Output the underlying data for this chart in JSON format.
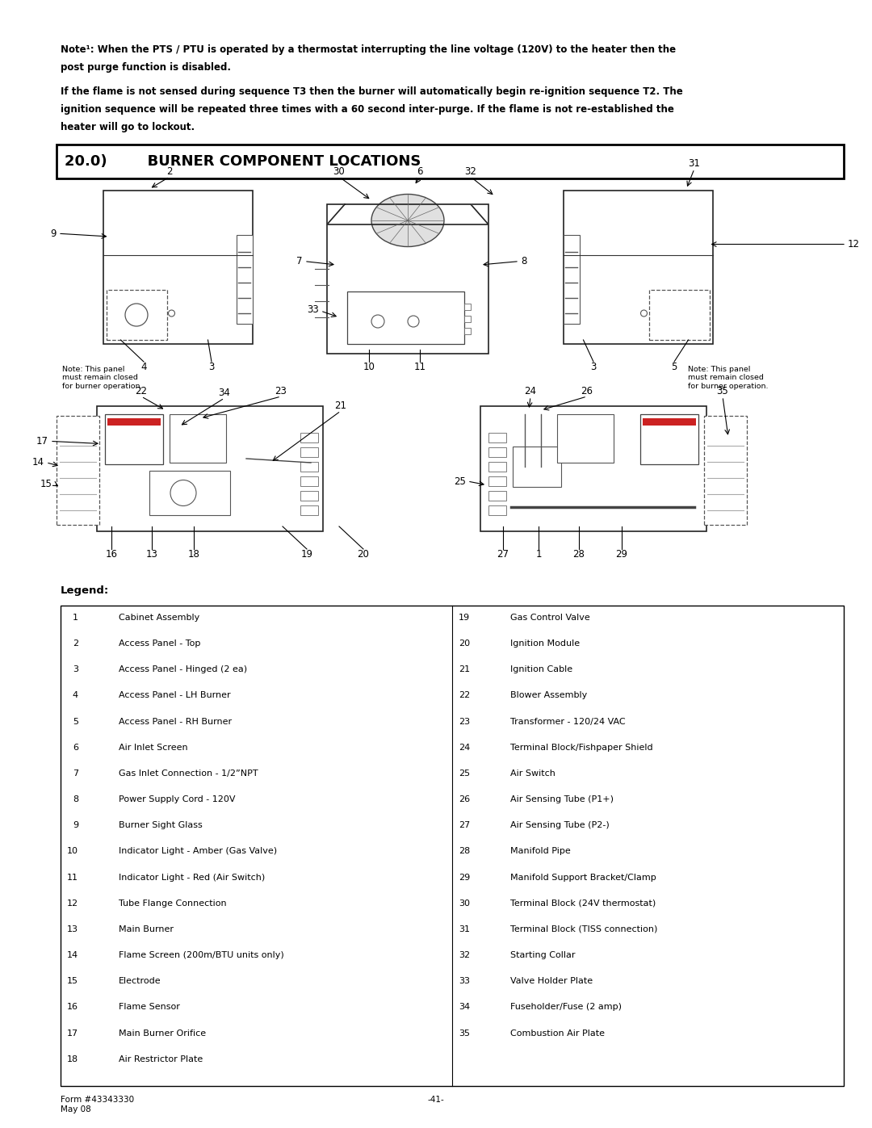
{
  "background_color": "#ffffff",
  "page_width": 10.8,
  "page_height": 13.97,
  "note1_line1": "Note¹: When the PTS / PTU is operated by a thermostat interrupting the line voltage (120V) to the heater then the",
  "note1_line2": "post purge function is disabled.",
  "note2_line1": "If the flame is not sensed during sequence T3 then the burner will automatically begin re-ignition sequence T2. The",
  "note2_line2": "ignition sequence will be repeated three times with a 60 second inter-purge. If the flame is not re-established the",
  "note2_line3": "heater will go to lockout.",
  "section_title": "20.0)        BURNER COMPONENT LOCATIONS",
  "legend_title": "Legend:",
  "legend_left": [
    [
      1,
      "Cabinet Assembly"
    ],
    [
      2,
      "Access Panel - Top"
    ],
    [
      3,
      "Access Panel - Hinged (2 ea)"
    ],
    [
      4,
      "Access Panel - LH Burner"
    ],
    [
      5,
      "Access Panel - RH Burner"
    ],
    [
      6,
      "Air Inlet Screen"
    ],
    [
      7,
      "Gas Inlet Connection - 1/2”NPT"
    ],
    [
      8,
      "Power Supply Cord - 120V"
    ],
    [
      9,
      "Burner Sight Glass"
    ],
    [
      10,
      "Indicator Light - Amber (Gas Valve)"
    ],
    [
      11,
      "Indicator Light - Red (Air Switch)"
    ],
    [
      12,
      "Tube Flange Connection"
    ],
    [
      13,
      "Main Burner"
    ],
    [
      14,
      "Flame Screen (200m/BTU units only)"
    ],
    [
      15,
      "Electrode"
    ],
    [
      16,
      "Flame Sensor"
    ],
    [
      17,
      "Main Burner Orifice"
    ],
    [
      18,
      "Air Restrictor Plate"
    ]
  ],
  "legend_right": [
    [
      19,
      "Gas Control Valve"
    ],
    [
      20,
      "Ignition Module"
    ],
    [
      21,
      "Ignition Cable"
    ],
    [
      22,
      "Blower Assembly"
    ],
    [
      23,
      "Transformer - 120/24 VAC"
    ],
    [
      24,
      "Terminal Block/Fishpaper Shield"
    ],
    [
      25,
      "Air Switch"
    ],
    [
      26,
      "Air Sensing Tube (P1+)"
    ],
    [
      27,
      "Air Sensing Tube (P2-)"
    ],
    [
      28,
      "Manifold Pipe"
    ],
    [
      29,
      "Manifold Support Bracket/Clamp"
    ],
    [
      30,
      "Terminal Block (24V thermostat)"
    ],
    [
      31,
      "Terminal Block (TISS connection)"
    ],
    [
      32,
      "Starting Collar"
    ],
    [
      33,
      "Valve Holder Plate"
    ],
    [
      34,
      "Fuseholder/Fuse (2 amp)"
    ],
    [
      35,
      "Combustion Air Plate"
    ]
  ],
  "footer_left": "Form #43343330\nMay 08",
  "footer_center": "-41-"
}
